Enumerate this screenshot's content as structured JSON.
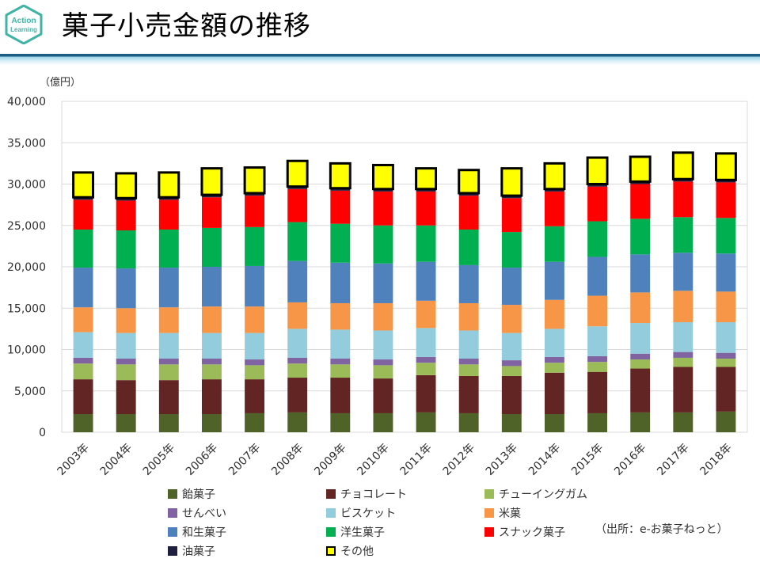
{
  "page": {
    "title": "菓子小売金額の推移",
    "logo_text": [
      "Action",
      "Learning"
    ],
    "source_note": "（出所：e-お菓子ねっと）"
  },
  "colors": {
    "logo_primary": "#3fb3a5",
    "title_rule": "#1b5e83"
  },
  "chart_data": {
    "type": "bar",
    "stacked": true,
    "ylabel": "（億円）",
    "ylim": [
      0,
      40000
    ],
    "yticks": [
      "0",
      "5,000",
      "10,000",
      "15,000",
      "20,000",
      "25,000",
      "30,000",
      "35,000",
      "40,000"
    ],
    "categories": [
      "2003年",
      "2004年",
      "2005年",
      "2006年",
      "2007年",
      "2008年",
      "2009年",
      "2010年",
      "2011年",
      "2012年",
      "2013年",
      "2014年",
      "2015年",
      "2016年",
      "2017年",
      "2018年"
    ],
    "series": [
      {
        "name": "飴菓子",
        "color": "#4f6228",
        "values": [
          2200,
          2200,
          2200,
          2200,
          2300,
          2400,
          2300,
          2300,
          2400,
          2300,
          2200,
          2200,
          2300,
          2400,
          2400,
          2500
        ]
      },
      {
        "name": "チョコレート",
        "color": "#632523",
        "values": [
          4200,
          4100,
          4100,
          4200,
          4100,
          4200,
          4300,
          4200,
          4500,
          4500,
          4600,
          5000,
          5000,
          5300,
          5500,
          5400
        ]
      },
      {
        "name": "チューイングガム",
        "color": "#9bbb59",
        "values": [
          1900,
          1900,
          1900,
          1800,
          1700,
          1700,
          1600,
          1600,
          1500,
          1400,
          1200,
          1200,
          1200,
          1100,
          1100,
          1000
        ]
      },
      {
        "name": "せんべい",
        "color": "#8064a2",
        "values": [
          700,
          700,
          700,
          700,
          700,
          700,
          700,
          700,
          700,
          700,
          700,
          700,
          700,
          700,
          700,
          700
        ]
      },
      {
        "name": "ビスケット",
        "color": "#93cddd",
        "values": [
          3100,
          3100,
          3100,
          3100,
          3200,
          3500,
          3500,
          3500,
          3500,
          3400,
          3300,
          3400,
          3600,
          3700,
          3600,
          3700
        ]
      },
      {
        "name": "米菓",
        "color": "#f79646",
        "values": [
          3000,
          3000,
          3100,
          3200,
          3200,
          3200,
          3200,
          3300,
          3300,
          3300,
          3400,
          3500,
          3700,
          3700,
          3800,
          3700
        ]
      },
      {
        "name": "和生菓子",
        "color": "#4f81bd",
        "values": [
          4800,
          4800,
          4800,
          4800,
          4900,
          5000,
          4900,
          4800,
          4700,
          4600,
          4500,
          4600,
          4700,
          4600,
          4600,
          4600
        ]
      },
      {
        "name": "洋生菓子",
        "color": "#00b050",
        "values": [
          4600,
          4600,
          4600,
          4700,
          4700,
          4700,
          4700,
          4600,
          4400,
          4300,
          4300,
          4300,
          4300,
          4300,
          4300,
          4300
        ]
      },
      {
        "name": "スナック菓子",
        "color": "#ff0000",
        "values": [
          3600,
          3600,
          3600,
          3700,
          3800,
          4000,
          4000,
          4100,
          4100,
          4100,
          4100,
          4200,
          4200,
          4200,
          4300,
          4300
        ]
      },
      {
        "name": "油菓子",
        "color": "#1f1f3f",
        "values": [
          300,
          300,
          300,
          300,
          300,
          300,
          300,
          300,
          300,
          300,
          300,
          300,
          300,
          300,
          300,
          300
        ]
      },
      {
        "name": "その他",
        "color": "#ffff00",
        "values": [
          3000,
          3000,
          3000,
          3200,
          3100,
          3100,
          3000,
          2900,
          2500,
          2800,
          3300,
          3100,
          3200,
          3000,
          3200,
          3200
        ]
      }
    ],
    "legend_position": "bottom"
  }
}
